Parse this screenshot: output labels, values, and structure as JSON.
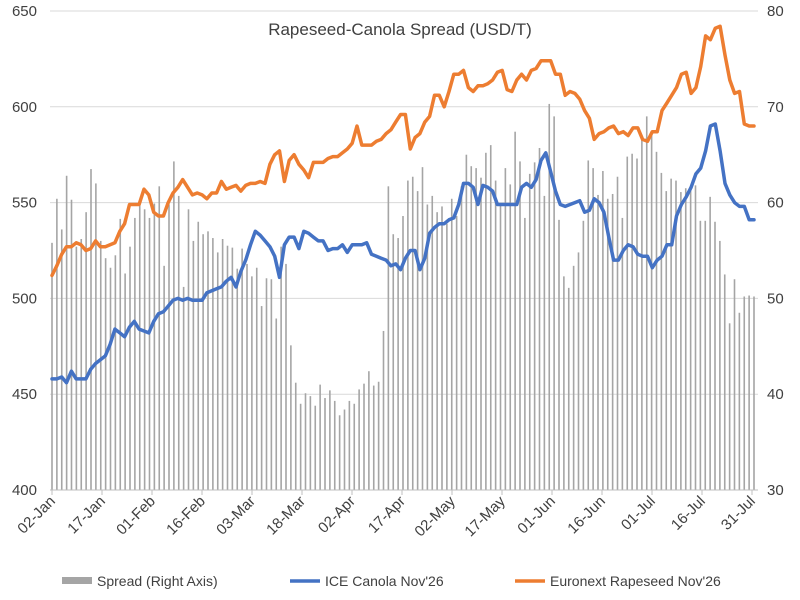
{
  "chart_data": {
    "type": "line",
    "title": "Rapeseed-Canola Spread (USD/T)",
    "x_tick_labels": [
      "02-Jan",
      "17-Jan",
      "01-Feb",
      "16-Feb",
      "03-Mar",
      "18-Mar",
      "02-Apr",
      "17-Apr",
      "02-May",
      "17-May",
      "01-Jun",
      "16-Jun",
      "01-Jul",
      "16-Jul",
      "31-Jul"
    ],
    "y_left": {
      "min": 400,
      "max": 650,
      "step": 50,
      "tick_labels": [
        "400",
        "450",
        "500",
        "550",
        "600",
        "650"
      ]
    },
    "y_right": {
      "min": 30,
      "max": 80,
      "step": 10,
      "tick_labels": [
        "30",
        "40",
        "50",
        "60",
        "70",
        "80"
      ]
    },
    "grid": "horizontal",
    "legend_position": "bottom",
    "series": [
      {
        "name": "Spread (Right Axis)",
        "type": "bar",
        "axis": "right",
        "color": "#a5a5a5",
        "values": [
          55.8,
          60.4,
          57.2,
          62.8,
          60.3,
          55.4,
          56.2,
          59.0,
          63.5,
          62.0,
          56.0,
          54.2,
          53.2,
          54.5,
          58.3,
          52.6,
          55.4,
          58.4,
          60.3,
          59.3,
          58.4,
          59.9,
          61.7,
          53.4,
          59.8,
          64.3,
          60.7,
          51.2,
          59.3,
          56.0,
          58.0,
          56.7,
          57.0,
          56.3,
          54.8,
          56.2,
          55.5,
          55.3,
          53.1,
          55.2,
          53.6,
          52.3,
          53.2,
          49.2,
          52.1,
          52.0,
          47.9,
          55.4,
          53.6,
          45.1,
          41.2,
          39.0,
          40.1,
          39.8,
          38.8,
          41.0,
          39.6,
          40.4,
          39.3,
          37.8,
          38.4,
          39.3,
          39.0,
          40.5,
          41.1,
          42.4,
          40.9,
          41.3,
          46.6,
          61.7,
          56.7,
          56.3,
          58.6,
          62.3,
          62.7,
          61.2,
          63.7,
          59.8,
          60.7,
          59.0,
          59.6,
          57.8,
          60.4,
          58.6,
          61.7,
          65.0,
          63.8,
          63.6,
          62.6,
          65.2,
          66.0,
          62.3,
          59.7,
          63.6,
          61.9,
          67.4,
          64.3,
          58.4,
          63.0,
          64.2,
          65.7,
          60.7,
          70.3,
          69.0,
          58.2,
          52.3,
          51.1,
          53.4,
          54.8,
          58.1,
          64.4,
          63.6,
          60.8,
          63.3,
          60.4,
          60.9,
          62.7,
          58.4,
          64.8,
          65.1,
          64.6,
          66.6,
          69.0,
          67.2,
          65.3,
          63.1,
          61.2,
          62.5,
          62.3,
          61.1,
          61.5,
          61.7,
          61.8,
          58.1,
          58.1,
          60.6,
          58.0,
          56.0,
          52.5,
          47.4,
          52.0,
          48.5,
          50.2,
          50.3,
          50.2
        ],
        "mark_values": [
          55.8,
          60.4,
          57.2,
          62.8,
          60.3,
          55.4,
          56.2,
          59.0,
          63.5,
          62.0,
          56.0,
          54.2,
          53.2,
          54.5,
          58.3,
          52.6,
          55.4,
          58.4,
          60.3,
          59.3,
          58.4,
          59.9,
          61.7,
          53.4,
          59.8,
          64.3,
          60.7,
          51.2,
          59.3,
          56.0,
          58.0,
          56.7,
          57.0,
          56.3,
          54.8,
          56.2,
          55.5,
          55.3,
          53.1,
          55.2,
          53.6,
          52.3,
          53.2,
          49.2,
          52.1,
          52.0,
          47.9,
          55.4,
          53.6,
          45.1,
          41.2,
          39.0,
          40.1,
          39.8,
          38.8,
          41.0,
          39.6,
          40.4,
          39.3,
          37.8,
          38.4,
          39.3,
          39.0,
          40.5,
          41.1,
          42.4,
          40.9,
          41.3,
          46.6,
          61.7,
          56.7,
          56.3,
          58.6,
          62.3,
          62.7,
          61.2,
          63.7,
          59.8,
          60.7,
          59.0,
          59.6,
          57.8,
          60.4,
          58.6,
          61.7,
          65.0,
          63.8,
          63.6,
          62.6,
          65.2,
          66.0,
          62.3,
          59.7,
          63.6,
          61.9,
          67.4,
          64.3,
          58.4,
          63.0,
          64.2,
          65.7,
          60.7,
          70.3,
          69.0,
          58.2,
          52.3,
          51.1,
          53.4,
          54.8,
          58.1,
          64.4,
          63.6,
          60.8,
          63.3,
          60.4,
          60.9,
          62.7,
          58.4,
          64.8,
          65.1,
          64.6,
          66.6,
          69.0,
          67.2,
          65.3,
          63.1,
          61.2,
          62.5,
          62.3,
          61.1,
          61.5,
          61.7,
          61.8,
          58.1,
          58.1,
          60.6,
          58.0,
          56.0,
          52.5,
          47.4,
          52.0,
          48.5,
          50.2,
          50.3,
          50.2
        ]
      },
      {
        "name": "ICE Canola Nov'26",
        "type": "line",
        "axis": "left",
        "color": "#4472c4",
        "values": [
          458,
          458,
          459,
          456,
          462,
          458,
          458,
          458,
          463,
          466,
          468,
          470,
          476,
          484,
          482,
          480,
          485,
          488,
          484,
          483,
          482,
          488,
          492,
          493,
          496,
          499,
          500,
          499,
          500,
          499,
          499,
          499,
          503,
          504,
          505,
          506,
          509,
          511,
          506,
          514,
          520,
          528,
          535,
          533,
          530,
          527,
          522,
          511,
          528,
          532,
          532,
          526,
          535,
          534,
          532,
          530,
          530,
          525,
          526,
          526,
          528,
          524,
          528,
          528,
          528,
          529,
          523,
          522,
          521,
          520,
          517,
          518,
          515,
          521,
          525,
          525,
          515,
          521,
          534,
          537,
          539,
          539,
          541,
          542,
          549,
          560,
          560,
          558,
          549,
          559,
          558,
          556,
          549,
          549,
          549,
          549,
          549,
          558,
          560,
          558,
          562,
          572,
          576,
          566,
          556,
          549,
          548,
          549,
          550,
          551,
          545,
          546,
          552,
          550,
          545,
          532,
          520,
          520,
          525,
          528,
          527,
          523,
          522,
          522,
          516,
          520,
          522,
          528,
          528,
          543,
          549,
          553,
          558,
          565,
          568,
          577,
          590,
          591,
          577,
          560,
          554,
          550,
          548,
          548,
          541,
          541
        ],
        "mark_values": [
          458,
          458,
          459,
          456,
          462,
          458,
          458,
          458,
          463,
          466,
          468,
          470,
          476,
          484,
          482,
          480,
          485,
          488,
          484,
          483,
          482,
          488,
          492,
          493,
          496,
          499,
          500,
          499,
          500,
          499,
          499,
          499,
          503,
          504,
          505,
          506,
          509,
          511,
          506,
          514,
          520,
          528,
          535,
          533,
          530,
          527,
          522,
          511,
          528,
          532,
          532,
          526,
          535,
          534,
          532,
          530,
          530,
          525,
          526,
          526,
          528,
          524,
          528,
          528,
          528,
          529,
          523,
          522,
          521,
          520,
          517,
          518,
          515,
          521,
          525,
          525,
          515,
          521,
          534,
          537,
          539,
          539,
          541,
          542,
          549,
          560,
          560,
          558,
          549,
          559,
          558,
          556,
          549,
          549,
          549,
          549,
          549,
          558,
          560,
          558,
          562,
          572,
          576,
          566,
          556,
          549,
          548,
          549,
          550,
          551,
          545,
          546,
          552,
          550,
          545,
          532,
          520,
          520,
          525,
          528,
          527,
          523,
          522,
          522,
          516,
          520,
          522,
          528,
          528,
          543,
          549,
          553,
          558,
          565,
          568,
          577,
          590,
          591,
          577,
          560,
          554,
          550,
          548,
          548,
          541,
          541
        ]
      },
      {
        "name": "Euronext Rapeseed Nov'26",
        "type": "line",
        "axis": "left",
        "color": "#ed7d31",
        "values": [
          512,
          517,
          523,
          527,
          527,
          529,
          528,
          525,
          526,
          530,
          527,
          527,
          528,
          529,
          535,
          539,
          549,
          549,
          549,
          557,
          554,
          545,
          543,
          543,
          550,
          555,
          558,
          562,
          558,
          554,
          555,
          554,
          552,
          555,
          555,
          561,
          557,
          558,
          559,
          556,
          559,
          560,
          560,
          561,
          560,
          570,
          575,
          577,
          561,
          572,
          575,
          570,
          567,
          563,
          571,
          571,
          571,
          573,
          574,
          574,
          576,
          578,
          581,
          590,
          580,
          580,
          580,
          582,
          583,
          586,
          588,
          592,
          596,
          596,
          578,
          584,
          586,
          592,
          595,
          606,
          606,
          600,
          608,
          617,
          617,
          619,
          610,
          608,
          611,
          611,
          612,
          614,
          618,
          619,
          609,
          608,
          614,
          617,
          614,
          619,
          620,
          624,
          624,
          624,
          617,
          617,
          606,
          608,
          607,
          604,
          598,
          594,
          583,
          586,
          587,
          589,
          590,
          586,
          587,
          585,
          589,
          589,
          583,
          582,
          587,
          587,
          598,
          602,
          606,
          610,
          617,
          618,
          607,
          610,
          621,
          637,
          635,
          641,
          642,
          627,
          614,
          607,
          608,
          591,
          590,
          590
        ],
        "mark_values": [
          512,
          517,
          523,
          527,
          527,
          529,
          528,
          525,
          526,
          530,
          527,
          527,
          528,
          529,
          535,
          539,
          549,
          549,
          549,
          557,
          554,
          545,
          543,
          543,
          550,
          555,
          558,
          562,
          558,
          554,
          555,
          554,
          552,
          555,
          555,
          561,
          557,
          558,
          559,
          556,
          559,
          560,
          560,
          561,
          560,
          570,
          575,
          577,
          561,
          572,
          575,
          570,
          567,
          563,
          571,
          571,
          571,
          573,
          574,
          574,
          576,
          578,
          581,
          590,
          580,
          580,
          580,
          582,
          583,
          586,
          588,
          592,
          596,
          596,
          578,
          584,
          586,
          592,
          595,
          606,
          606,
          600,
          608,
          617,
          617,
          619,
          610,
          608,
          611,
          611,
          612,
          614,
          618,
          619,
          609,
          608,
          614,
          617,
          614,
          619,
          620,
          624,
          624,
          624,
          617,
          617,
          606,
          608,
          607,
          604,
          598,
          594,
          583,
          586,
          587,
          589,
          590,
          586,
          587,
          585,
          589,
          589,
          583,
          582,
          587,
          587,
          598,
          602,
          606,
          610,
          617,
          618,
          607,
          610,
          621,
          637,
          635,
          641,
          642,
          627,
          614,
          607,
          608,
          591,
          590,
          590
        ]
      }
    ]
  }
}
